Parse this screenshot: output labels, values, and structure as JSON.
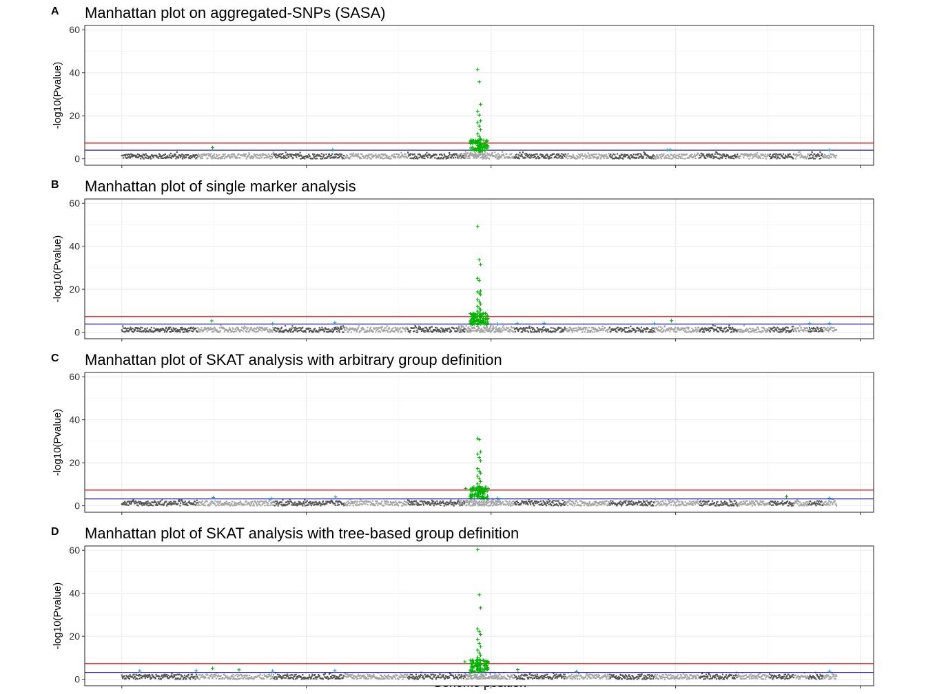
{
  "figure": {
    "xlabel": "Genome position",
    "colors": {
      "chrom_dark": "#555555",
      "chrom_light": "#a6a6a6",
      "significant": "#00b300",
      "suggestive_marker": "#1f9ad1",
      "threshold_genomewide": "#e31a1c",
      "threshold_suggestive": "#1f1fb4",
      "grid": "#ebebeb",
      "panel_border": "#333333"
    }
  },
  "chart_data": [
    {
      "panel": "A",
      "type": "scatter",
      "title": "Manhattan plot on aggregated-SNPs (SASA)",
      "xlabel": "",
      "ylabel": "-log10(Pvalue)",
      "ylim": [
        -3,
        62
      ],
      "yticks": [
        0,
        20,
        40,
        60
      ],
      "grid": true,
      "thresholds": [
        7.3,
        4
      ],
      "peak": {
        "x": 0.5,
        "values": [
          41.5,
          35.8,
          25.3,
          22.1,
          20.3,
          17.6,
          16.8,
          15.2,
          13.5,
          11.6,
          10.4,
          9.2,
          8.3,
          7.6,
          6.8,
          6.1,
          5.6,
          5.1,
          4.8,
          4.6
        ]
      },
      "outliers": [
        {
          "x": 0.127,
          "y": 5.2
        },
        {
          "x": 0.295,
          "y": 4.2
        },
        {
          "x": 0.763,
          "y": 4.1
        },
        {
          "x": 0.767,
          "y": 4.2
        },
        {
          "x": 0.99,
          "y": 4.1
        }
      ]
    },
    {
      "panel": "B",
      "type": "scatter",
      "title": "Manhattan plot of single marker analysis",
      "xlabel": "",
      "ylabel": "-log10(Pvalue)",
      "ylim": [
        -3,
        62
      ],
      "yticks": [
        0,
        20,
        40,
        60
      ],
      "grid": true,
      "thresholds": [
        7.3,
        3.8
      ],
      "peak": {
        "x": 0.5,
        "values": [
          49.2,
          33.7,
          31.5,
          25.1,
          24.0,
          19.2,
          18.8,
          18.1,
          17.5,
          15.3,
          14.2,
          13.1,
          12.0,
          11.2,
          10.4,
          9.8,
          9.1,
          8.4,
          7.9,
          7.3,
          6.8,
          6.2,
          5.8,
          5.4,
          5.0,
          4.7,
          4.4,
          4.1
        ]
      },
      "outliers": [
        {
          "x": 0.126,
          "y": 5.3
        },
        {
          "x": 0.211,
          "y": 4.0
        },
        {
          "x": 0.298,
          "y": 4.4
        },
        {
          "x": 0.526,
          "y": 3.9
        },
        {
          "x": 0.553,
          "y": 4.1
        },
        {
          "x": 0.591,
          "y": 4.2
        },
        {
          "x": 0.745,
          "y": 4.0
        },
        {
          "x": 0.769,
          "y": 5.4
        },
        {
          "x": 0.962,
          "y": 4.1
        },
        {
          "x": 0.99,
          "y": 4.1
        }
      ]
    },
    {
      "panel": "C",
      "type": "scatter",
      "title": "Manhattan plot of SKAT analysis with arbitrary group definition",
      "xlabel": "",
      "ylabel": "-log10(Pvalue)",
      "ylim": [
        -3,
        62
      ],
      "yticks": [
        0,
        20,
        40,
        60
      ],
      "grid": true,
      "thresholds": [
        7.3,
        3.2
      ],
      "peak": {
        "x": 0.5,
        "values": [
          31.3,
          30.8,
          25.1,
          24.0,
          22.4,
          20.9,
          17.3,
          16.1,
          15.2,
          13.8,
          12.5,
          11.3,
          10.2,
          9.1,
          8.1,
          7.2,
          6.4,
          5.7,
          5.0,
          4.4
        ]
      },
      "outliers": [
        {
          "x": 0.128,
          "y": 3.9
        },
        {
          "x": 0.209,
          "y": 3.4
        },
        {
          "x": 0.299,
          "y": 4.1
        },
        {
          "x": 0.481,
          "y": 8.0
        },
        {
          "x": 0.526,
          "y": 3.5
        },
        {
          "x": 0.93,
          "y": 4.3
        },
        {
          "x": 0.99,
          "y": 3.6
        }
      ]
    },
    {
      "panel": "D",
      "type": "scatter",
      "title": "Manhattan plot of SKAT analysis with tree-based group definition",
      "xlabel": "",
      "ylabel": "-log10(Pvalue)",
      "ylim": [
        -3,
        62
      ],
      "yticks": [
        0,
        20,
        40,
        60
      ],
      "grid": true,
      "thresholds": [
        7.3,
        3.2
      ],
      "peak": {
        "x": 0.5,
        "values": [
          60.3,
          39.3,
          33.2,
          23.4,
          22.1,
          20.8,
          18.6,
          16.7,
          15.2,
          13.6,
          12.3,
          11.1,
          10.2,
          9.4,
          8.7,
          8.0,
          7.4,
          6.9,
          6.3,
          5.8,
          5.3,
          4.9,
          4.5,
          4.1
        ]
      },
      "outliers": [
        {
          "x": 0.025,
          "y": 3.8
        },
        {
          "x": 0.104,
          "y": 4.0
        },
        {
          "x": 0.127,
          "y": 5.1
        },
        {
          "x": 0.164,
          "y": 4.4
        },
        {
          "x": 0.211,
          "y": 3.8
        },
        {
          "x": 0.298,
          "y": 4.0
        },
        {
          "x": 0.48,
          "y": 8.1
        },
        {
          "x": 0.554,
          "y": 4.5
        },
        {
          "x": 0.636,
          "y": 3.6
        },
        {
          "x": 0.99,
          "y": 3.7
        }
      ]
    }
  ]
}
